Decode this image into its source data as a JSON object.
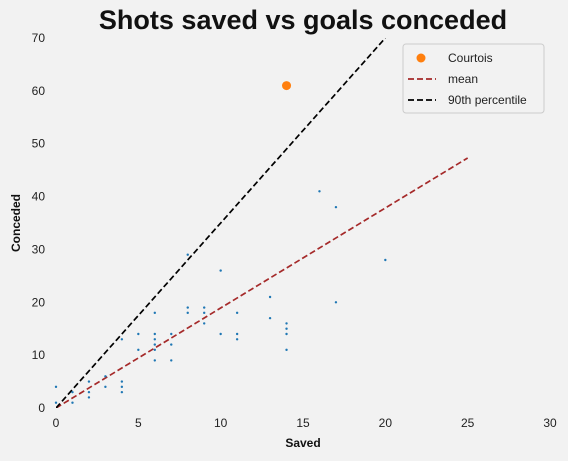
{
  "chart_data": {
    "type": "scatter",
    "title": "Shots saved vs goals conceded",
    "xlabel": "Saved",
    "ylabel": "Conceded",
    "xlim": [
      0,
      30
    ],
    "ylim": [
      0,
      70
    ],
    "xticks": [
      "0",
      "5",
      "10",
      "15",
      "20",
      "25",
      "30"
    ],
    "yticks": [
      "0",
      "10",
      "20",
      "30",
      "40",
      "50",
      "60",
      "70"
    ],
    "grid": false,
    "legend_position": "top-right",
    "colors": {
      "points": "#1f77b4",
      "highlight": "#ff7f0e",
      "mean_line": "#a52a2a",
      "percentile_line": "#000000"
    },
    "points": [
      {
        "x": 0,
        "y": 1
      },
      {
        "x": 0,
        "y": 4
      },
      {
        "x": 1,
        "y": 1
      },
      {
        "x": 1,
        "y": 3
      },
      {
        "x": 2,
        "y": 2
      },
      {
        "x": 2,
        "y": 3
      },
      {
        "x": 2,
        "y": 5
      },
      {
        "x": 3,
        "y": 4
      },
      {
        "x": 3,
        "y": 6
      },
      {
        "x": 4,
        "y": 3
      },
      {
        "x": 4,
        "y": 4
      },
      {
        "x": 4,
        "y": 5
      },
      {
        "x": 4,
        "y": 13
      },
      {
        "x": 5,
        "y": 11
      },
      {
        "x": 5,
        "y": 14
      },
      {
        "x": 6,
        "y": 9
      },
      {
        "x": 6,
        "y": 11
      },
      {
        "x": 6,
        "y": 12
      },
      {
        "x": 6,
        "y": 13
      },
      {
        "x": 6,
        "y": 14
      },
      {
        "x": 6,
        "y": 18
      },
      {
        "x": 7,
        "y": 9
      },
      {
        "x": 7,
        "y": 12
      },
      {
        "x": 7,
        "y": 14
      },
      {
        "x": 8,
        "y": 18
      },
      {
        "x": 8,
        "y": 19
      },
      {
        "x": 8,
        "y": 29
      },
      {
        "x": 9,
        "y": 16
      },
      {
        "x": 9,
        "y": 18
      },
      {
        "x": 9,
        "y": 19
      },
      {
        "x": 10,
        "y": 14
      },
      {
        "x": 10,
        "y": 26
      },
      {
        "x": 11,
        "y": 13
      },
      {
        "x": 11,
        "y": 14
      },
      {
        "x": 11,
        "y": 18
      },
      {
        "x": 13,
        "y": 17
      },
      {
        "x": 13,
        "y": 21
      },
      {
        "x": 14,
        "y": 11
      },
      {
        "x": 14,
        "y": 14
      },
      {
        "x": 14,
        "y": 15
      },
      {
        "x": 14,
        "y": 16
      },
      {
        "x": 16,
        "y": 41
      },
      {
        "x": 17,
        "y": 20
      },
      {
        "x": 17,
        "y": 38
      },
      {
        "x": 20,
        "y": 28
      }
    ],
    "highlight": {
      "name": "Courtois",
      "x": 14,
      "y": 61
    },
    "lines": [
      {
        "name": "mean",
        "style": "dashed",
        "x": [
          0,
          25
        ],
        "y": [
          0,
          47.3
        ]
      },
      {
        "name": "90th percentile",
        "style": "dashed",
        "x": [
          0,
          20
        ],
        "y": [
          0,
          70
        ]
      }
    ]
  }
}
